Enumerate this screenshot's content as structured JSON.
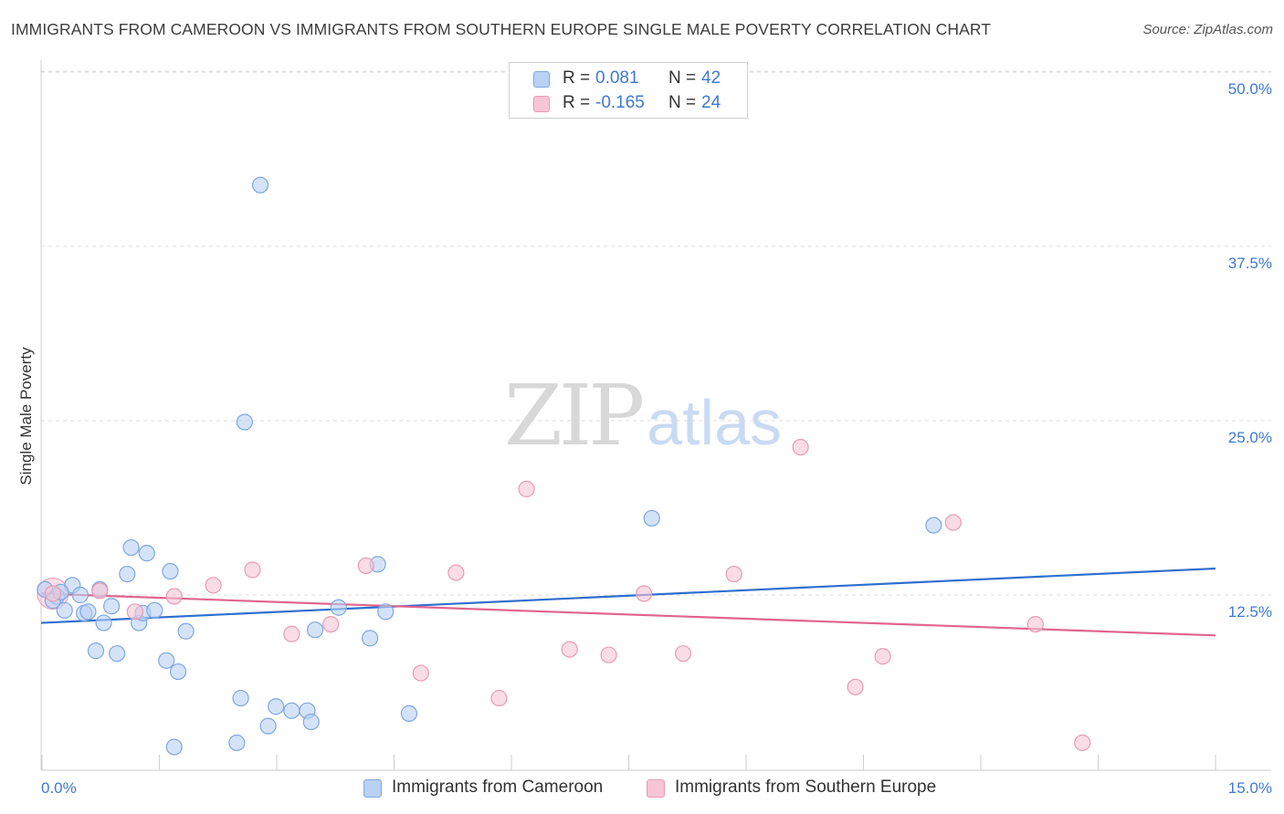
{
  "title": "IMMIGRANTS FROM CAMEROON VS IMMIGRANTS FROM SOUTHERN EUROPE SINGLE MALE POVERTY CORRELATION CHART",
  "source": "Source: ZipAtlas.com",
  "watermark": {
    "zip": "ZIP",
    "atlas": "atlas"
  },
  "colors": {
    "blue_fill": "#b9d1f3",
    "blue_stroke": "#7ea8e2",
    "blue_line": "#2f6fce",
    "pink_fill": "#f7c5d5",
    "pink_stroke": "#e99bb5",
    "pink_line": "#e0648f",
    "accent_text": "#3f7ad1"
  },
  "legend": {
    "rows": [
      {
        "r_label": "R =",
        "r_value": "0.081",
        "n_label": "N =",
        "n_value": "42"
      },
      {
        "r_label": "R =",
        "r_value": "-0.165",
        "n_label": "N =",
        "n_value": "24"
      }
    ]
  },
  "bottom_legend": [
    {
      "label": "Immigrants from Cameroon"
    },
    {
      "label": "Immigrants from Southern Europe"
    }
  ],
  "chart_data": {
    "type": "scatter",
    "title": "IMMIGRANTS FROM CAMEROON VS IMMIGRANTS FROM SOUTHERN EUROPE SINGLE MALE POVERTY CORRELATION CHART",
    "xlabel": "",
    "ylabel": "Single Male Poverty",
    "xlim": [
      0,
      15
    ],
    "ylim": [
      0,
      50
    ],
    "x_tick_labels": [
      {
        "value": 0,
        "label": "0.0%"
      },
      {
        "value": 15,
        "label": "15.0%"
      }
    ],
    "y_tick_labels": [
      {
        "value": 12.5,
        "label": "12.5%"
      },
      {
        "value": 25,
        "label": "25.0%"
      },
      {
        "value": 37.5,
        "label": "37.5%"
      },
      {
        "value": 50,
        "label": "50.0%"
      }
    ],
    "series": [
      {
        "name": "Immigrants from Cameroon",
        "color": "#b9d1f3",
        "points": [
          [
            0.05,
            12.9
          ],
          [
            0.2,
            12.4
          ],
          [
            0.3,
            11.4
          ],
          [
            0.4,
            13.2
          ],
          [
            0.5,
            12.5
          ],
          [
            0.55,
            11.2
          ],
          [
            0.6,
            11.3
          ],
          [
            0.75,
            12.9
          ],
          [
            0.8,
            10.5
          ],
          [
            0.9,
            11.7
          ],
          [
            0.7,
            8.5
          ],
          [
            0.97,
            8.3
          ],
          [
            1.1,
            14.0
          ],
          [
            1.15,
            15.9
          ],
          [
            1.25,
            10.5
          ],
          [
            1.3,
            11.2
          ],
          [
            1.35,
            15.5
          ],
          [
            1.45,
            11.4
          ],
          [
            1.6,
            7.8
          ],
          [
            1.7,
            1.6
          ],
          [
            1.75,
            7.0
          ],
          [
            1.85,
            9.9
          ],
          [
            2.5,
            1.9
          ],
          [
            2.55,
            5.1
          ],
          [
            1.65,
            14.2
          ],
          [
            2.6,
            24.9
          ],
          [
            2.8,
            41.9
          ],
          [
            2.9,
            3.1
          ],
          [
            3.0,
            4.5
          ],
          [
            3.2,
            4.2
          ],
          [
            3.4,
            4.2
          ],
          [
            3.45,
            3.4
          ],
          [
            3.5,
            10.0
          ],
          [
            3.8,
            11.6
          ],
          [
            4.2,
            9.4
          ],
          [
            4.3,
            14.7
          ],
          [
            4.4,
            11.3
          ],
          [
            4.7,
            4.0
          ],
          [
            7.8,
            18.0
          ],
          [
            11.4,
            17.5
          ],
          [
            0.15,
            12.1
          ],
          [
            0.25,
            12.7
          ]
        ]
      },
      {
        "name": "Immigrants from Southern Europe",
        "color": "#f7c5d5",
        "points": [
          [
            0.15,
            12.6
          ],
          [
            0.75,
            12.8
          ],
          [
            1.2,
            11.3
          ],
          [
            1.7,
            12.4
          ],
          [
            2.2,
            13.2
          ],
          [
            2.7,
            14.3
          ],
          [
            3.2,
            9.7
          ],
          [
            3.7,
            10.4
          ],
          [
            4.15,
            14.6
          ],
          [
            4.85,
            6.9
          ],
          [
            5.3,
            14.1
          ],
          [
            5.85,
            5.1
          ],
          [
            6.2,
            20.1
          ],
          [
            6.75,
            8.6
          ],
          [
            7.25,
            8.2
          ],
          [
            7.7,
            12.6
          ],
          [
            8.2,
            8.3
          ],
          [
            8.85,
            14.0
          ],
          [
            9.7,
            23.1
          ],
          [
            11.65,
            17.7
          ],
          [
            10.4,
            5.9
          ],
          [
            10.75,
            8.1
          ],
          [
            12.7,
            10.4
          ],
          [
            13.3,
            1.9
          ]
        ]
      }
    ],
    "trend_lines": [
      {
        "series": "Immigrants from Cameroon",
        "x": [
          0,
          15
        ],
        "y": [
          10.5,
          14.4
        ]
      },
      {
        "series": "Immigrants from Southern Europe",
        "x": [
          0,
          15
        ],
        "y": [
          12.6,
          9.6
        ]
      }
    ]
  }
}
